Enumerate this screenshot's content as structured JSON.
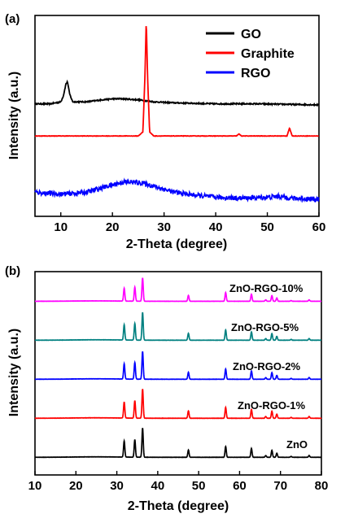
{
  "chart_data": [
    {
      "type": "line",
      "panel_label": "(a)",
      "xlabel": "2-Theta (degree)",
      "ylabel": "Intensity (a.u.)",
      "xlim": [
        5,
        60
      ],
      "xticks": [
        10,
        20,
        30,
        40,
        50,
        60
      ],
      "legend_position": "top-right",
      "series": [
        {
          "name": "GO",
          "color": "#000000",
          "baseline": 0.55,
          "points": [
            [
              5,
              0.56
            ],
            [
              8,
              0.56
            ],
            [
              10,
              0.57
            ],
            [
              10.5,
              0.6
            ],
            [
              11,
              0.66
            ],
            [
              11.3,
              0.67
            ],
            [
              11.7,
              0.61
            ],
            [
              12.3,
              0.57
            ],
            [
              15,
              0.57
            ],
            [
              18,
              0.58
            ],
            [
              20,
              0.585
            ],
            [
              22,
              0.585
            ],
            [
              25,
              0.58
            ],
            [
              28,
              0.57
            ],
            [
              32,
              0.565
            ],
            [
              40,
              0.56
            ],
            [
              48,
              0.56
            ],
            [
              60,
              0.555
            ]
          ]
        },
        {
          "name": "Graphite",
          "color": "#ff0000",
          "baseline": 0.4,
          "points": [
            [
              5,
              0.4
            ],
            [
              25,
              0.4
            ],
            [
              25.9,
              0.42
            ],
            [
              26.3,
              0.7
            ],
            [
              26.55,
              0.98
            ],
            [
              26.8,
              0.7
            ],
            [
              27.2,
              0.42
            ],
            [
              28,
              0.4
            ],
            [
              44,
              0.4
            ],
            [
              44.5,
              0.41
            ],
            [
              45,
              0.4
            ],
            [
              53.8,
              0.4
            ],
            [
              54.3,
              0.44
            ],
            [
              54.8,
              0.4
            ],
            [
              60,
              0.4
            ]
          ]
        },
        {
          "name": "RGO",
          "color": "#0000ff",
          "baseline": 0.08,
          "points": [
            [
              5,
              0.12
            ],
            [
              10,
              0.11
            ],
            [
              15,
              0.12
            ],
            [
              19,
              0.15
            ],
            [
              22,
              0.17
            ],
            [
              24,
              0.17
            ],
            [
              26,
              0.165
            ],
            [
              28,
              0.15
            ],
            [
              32,
              0.12
            ],
            [
              36,
              0.105
            ],
            [
              40,
              0.095
            ],
            [
              45,
              0.09
            ],
            [
              50,
              0.095
            ],
            [
              52,
              0.1
            ],
            [
              55,
              0.09
            ],
            [
              60,
              0.085
            ]
          ]
        }
      ]
    },
    {
      "type": "line",
      "panel_label": "(b)",
      "xlabel": "2-Theta (degree)",
      "ylabel": "Intensity (a.u.)",
      "xlim": [
        10,
        80
      ],
      "xticks": [
        10,
        20,
        30,
        40,
        50,
        60,
        70,
        80
      ],
      "peaks": [
        [
          31.8,
          0.55
        ],
        [
          34.4,
          0.6
        ],
        [
          36.3,
          1.0
        ],
        [
          47.5,
          0.25
        ],
        [
          56.6,
          0.37
        ],
        [
          62.9,
          0.3
        ],
        [
          66.4,
          0.06
        ],
        [
          67.9,
          0.24
        ],
        [
          69.1,
          0.14
        ],
        [
          72.6,
          0.03
        ],
        [
          77.0,
          0.06
        ]
      ],
      "series": [
        {
          "name": "ZnO",
          "color": "#000000",
          "offset": 0.0,
          "scale": 1.0
        },
        {
          "name": "ZnO-RGO-1%",
          "color": "#ff0000",
          "offset": 1.0,
          "scale": 1.0
        },
        {
          "name": "ZnO-RGO-2%",
          "color": "#0000ff",
          "offset": 2.0,
          "scale": 0.95
        },
        {
          "name": "ZnO-RGO-5%",
          "color": "#008080",
          "offset": 3.0,
          "scale": 0.95
        },
        {
          "name": "ZnO-RGO-10%",
          "color": "#ff00ff",
          "offset": 4.0,
          "scale": 0.8
        }
      ]
    }
  ]
}
